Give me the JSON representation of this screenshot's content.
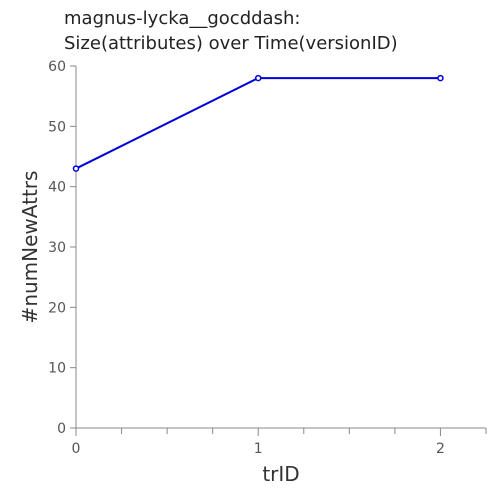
{
  "chart_data": {
    "type": "line",
    "title_line1": "magnus-lycka__gocddash:",
    "title_line2": "Size(attributes) over Time(versionID)",
    "xlabel": "trID",
    "ylabel": "#numNewAttrs",
    "x": [
      0,
      1,
      2
    ],
    "y": [
      43,
      58,
      58
    ],
    "xlim": [
      0,
      2.25
    ],
    "ylim": [
      0,
      60
    ],
    "x_ticks": [
      0,
      1,
      2
    ],
    "y_ticks": [
      0,
      10,
      20,
      30,
      40,
      50,
      60
    ],
    "grid": false,
    "line_color": "#0000dd"
  }
}
